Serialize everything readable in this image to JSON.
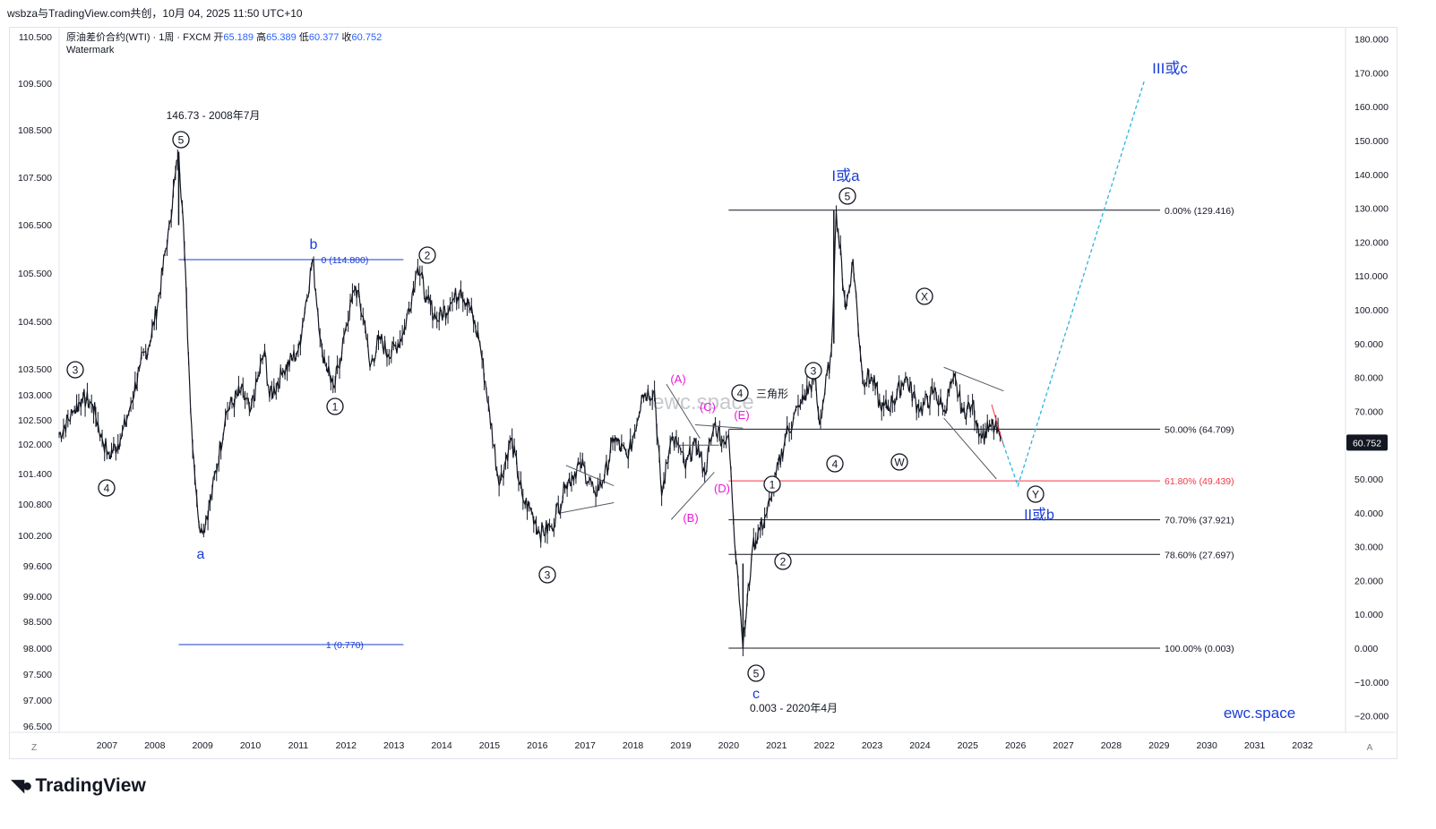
{
  "header": {
    "share_text": "wsbza与TradingView.com共创，10月 04, 2025 11:50 UTC+10"
  },
  "symbol": {
    "title": "原油差价合约(WTI) · 1周 · FXCM",
    "open_label": "开",
    "open": "65.189",
    "high_label": "高",
    "high": "65.389",
    "low_label": "低",
    "low": "60.377",
    "close_label": "收",
    "close": "60.752",
    "watermark_label": "Watermark"
  },
  "brand": {
    "name": "TradingView"
  },
  "colors": {
    "price": "#131722",
    "wave_blue": "#1a3dd6",
    "wave_magenta": "#e61adb",
    "fib_red": "#f23645",
    "projection": "#26b5e0",
    "price_tag_bg": "#131722"
  },
  "chart_data": {
    "type": "line",
    "title": "原油差价合约(WTI) · 1周 · FXCM",
    "xlim": [
      2006.0,
      2032.9
    ],
    "ylim": [
      -22,
      182
    ],
    "x_ticks": [
      "2007",
      "2008",
      "2009",
      "2010",
      "2011",
      "2012",
      "2013",
      "2014",
      "2015",
      "2016",
      "2017",
      "2018",
      "2019",
      "2020",
      "2021",
      "2022",
      "2023",
      "2024",
      "2025",
      "2026",
      "2027",
      "2028",
      "2029",
      "2030",
      "2031",
      "2032"
    ],
    "right_axis_ticks": [
      "180.000",
      "170.000",
      "160.000",
      "150.000",
      "140.000",
      "130.000",
      "120.000",
      "110.000",
      "100.000",
      "90.000",
      "80.000",
      "70.000",
      "60.000",
      "50.000",
      "40.000",
      "30.000",
      "20.000",
      "10.000",
      "0.000",
      "−10.000",
      "−20.000"
    ],
    "left_axis_ticks": [
      "110.500",
      "109.500",
      "108.500",
      "107.500",
      "106.500",
      "105.500",
      "104.500",
      "103.500",
      "103.000",
      "102.500",
      "102.000",
      "101.400",
      "100.800",
      "100.200",
      "99.600",
      "99.000",
      "98.500",
      "98.000",
      "97.500",
      "97.000",
      "96.500"
    ],
    "current_price_tag": "60.752",
    "series": [
      {
        "x": [
          2006.0,
          2006.3,
          2006.5,
          2006.7,
          2006.9,
          2007.05,
          2007.3,
          2007.5,
          2007.7,
          2007.9,
          2008.1,
          2008.3,
          2008.5,
          2008.6,
          2008.75,
          2008.9,
          2009.0,
          2009.2,
          2009.5,
          2009.8,
          2010.0,
          2010.3,
          2010.4,
          2010.7,
          2011.0,
          2011.3,
          2011.5,
          2011.75,
          2012.0,
          2012.2,
          2012.4,
          2012.5,
          2012.7,
          2012.9,
          2013.2,
          2013.5,
          2013.7,
          2013.9,
          2014.2,
          2014.4,
          2014.6,
          2014.8,
          2015.0,
          2015.2,
          2015.45,
          2015.7,
          2015.9,
          2016.05,
          2016.3,
          2016.6,
          2016.9,
          2017.2,
          2017.4,
          2017.6,
          2017.9,
          2018.2,
          2018.45,
          2018.6,
          2018.8,
          2018.95,
          2019.1,
          2019.3,
          2019.5,
          2019.7,
          2019.9,
          2020.0,
          2020.1,
          2020.2,
          2020.3,
          2020.5,
          2020.8,
          2020.9,
          2021.2,
          2021.5,
          2021.8,
          2021.9,
          2022.15,
          2022.25,
          2022.45,
          2022.6,
          2022.8,
          2023.0,
          2023.2,
          2023.45,
          2023.7,
          2024.0,
          2024.3,
          2024.5,
          2024.7,
          2024.9,
          2025.1,
          2025.3,
          2025.5,
          2025.7
        ],
        "y": [
          63,
          70,
          74,
          72,
          62,
          57,
          62,
          72,
          84,
          90,
          105,
          125,
          146.7,
          125,
          70,
          40,
          34,
          46,
          70,
          76,
          70,
          88,
          74,
          82,
          88,
          114.8,
          88,
          77,
          95,
          107,
          95,
          83,
          92,
          86,
          93,
          112.6,
          103,
          97,
          102,
          106,
          100,
          90,
          70,
          48,
          62,
          44,
          40,
          34,
          36,
          48,
          55,
          46,
          50,
          62,
          56,
          75,
          76,
          45,
          62,
          60,
          53,
          62,
          52,
          66,
          61,
          63,
          38,
          20,
          0.003,
          30,
          40,
          45,
          63,
          72,
          80,
          66,
          88,
          129.4,
          100,
          115,
          80,
          80,
          70,
          73,
          80,
          70,
          76,
          70,
          80,
          70,
          72,
          62,
          66,
          62
        ]
      }
    ],
    "fibonacci": [
      {
        "label": "0.00% (129.416)",
        "value": 129.416
      },
      {
        "label": "50.00% (64.709)",
        "value": 64.709
      },
      {
        "label": "61.80% (49.439)",
        "value": 49.439
      },
      {
        "label": "70.70% (37.921)",
        "value": 37.921
      },
      {
        "label": "78.60% (27.697)",
        "value": 27.697
      },
      {
        "label": "100.00% (0.003)",
        "value": 0.003
      }
    ],
    "fib_old": [
      {
        "label": "0 (114.800)",
        "value": 114.8
      },
      {
        "label": "1 (0.770)",
        "value": 0.77
      }
    ],
    "projection": [
      [
        2025.7,
        62
      ],
      [
        2026.05,
        48
      ],
      [
        2028.7,
        168
      ]
    ],
    "annotations": {
      "peak_2008": "146.73 - 2008年7月",
      "low_2020": "0.003 - 2020年4月",
      "wave_I_a": "I或a",
      "wave_II_b": "II或b",
      "wave_III_c": "III或c",
      "wave_a": "a",
      "wave_b": "b",
      "wave_c": "c",
      "triangle": "三角形",
      "watermark_text": "ewc.space",
      "site": "ewc.space",
      "n1": "1",
      "n2": "2",
      "n3": "3",
      "n4": "4",
      "n5": "5",
      "A": "(A)",
      "B": "(B)",
      "C": "(C)",
      "D": "(D)",
      "E": "(E)",
      "W": "W",
      "X": "X",
      "Y": "Y",
      "z_btn": "Z",
      "a_btn": "A"
    }
  }
}
